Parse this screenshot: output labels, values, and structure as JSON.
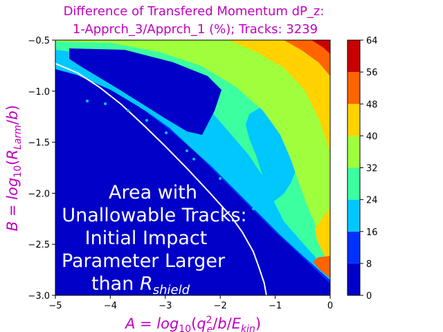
{
  "chart_data": {
    "type": "heatmap",
    "subtype": "filled-contour",
    "title_line1": "Difference of Transfered Momentum dP_z:",
    "title_line2": "1-Apprch_3/Apprch_1 (%); Tracks: 3239",
    "xlabel": "A = log_10(q_e^2/b/E_kin)",
    "ylabel": "B = log_10(R_Larm/b)",
    "xlim": [
      -5,
      0
    ],
    "ylim": [
      -3.0,
      -0.5
    ],
    "xticks": [
      "−5",
      "−4",
      "−3",
      "−2",
      "−1",
      "0"
    ],
    "yticks": [
      "−3.0",
      "−2.5",
      "−2.0",
      "−1.5",
      "−1.0",
      "−0.5"
    ],
    "colorbar": {
      "levels": [
        0,
        8,
        16,
        24,
        32,
        40,
        48,
        56,
        64
      ],
      "tick_labels": [
        "0",
        "8",
        "16",
        "24",
        "32",
        "40",
        "48",
        "56",
        "64"
      ],
      "colors": [
        "#0000c8",
        "#0032ff",
        "#00c8ff",
        "#3cffa0",
        "#a0ff3c",
        "#ffd200",
        "#ff6400",
        "#c80000"
      ]
    },
    "annotation_lines": [
      "Area with",
      "Unallowable Tracks:",
      "Initial Impact",
      "Parameter Larger",
      "than R_shield"
    ],
    "boundary_curve": {
      "color": "#ffffff",
      "x": [
        -5.0,
        -4.6,
        -4.2,
        -3.8,
        -3.4,
        -3.0,
        -2.6,
        -2.2,
        -1.8,
        -1.6,
        -1.4,
        -1.3,
        -1.2,
        -1.16
      ],
      "y": [
        -0.73,
        -0.82,
        -0.96,
        -1.13,
        -1.33,
        -1.54,
        -1.76,
        -1.99,
        -2.23,
        -2.38,
        -2.57,
        -2.72,
        -2.88,
        -3.0
      ]
    }
  }
}
